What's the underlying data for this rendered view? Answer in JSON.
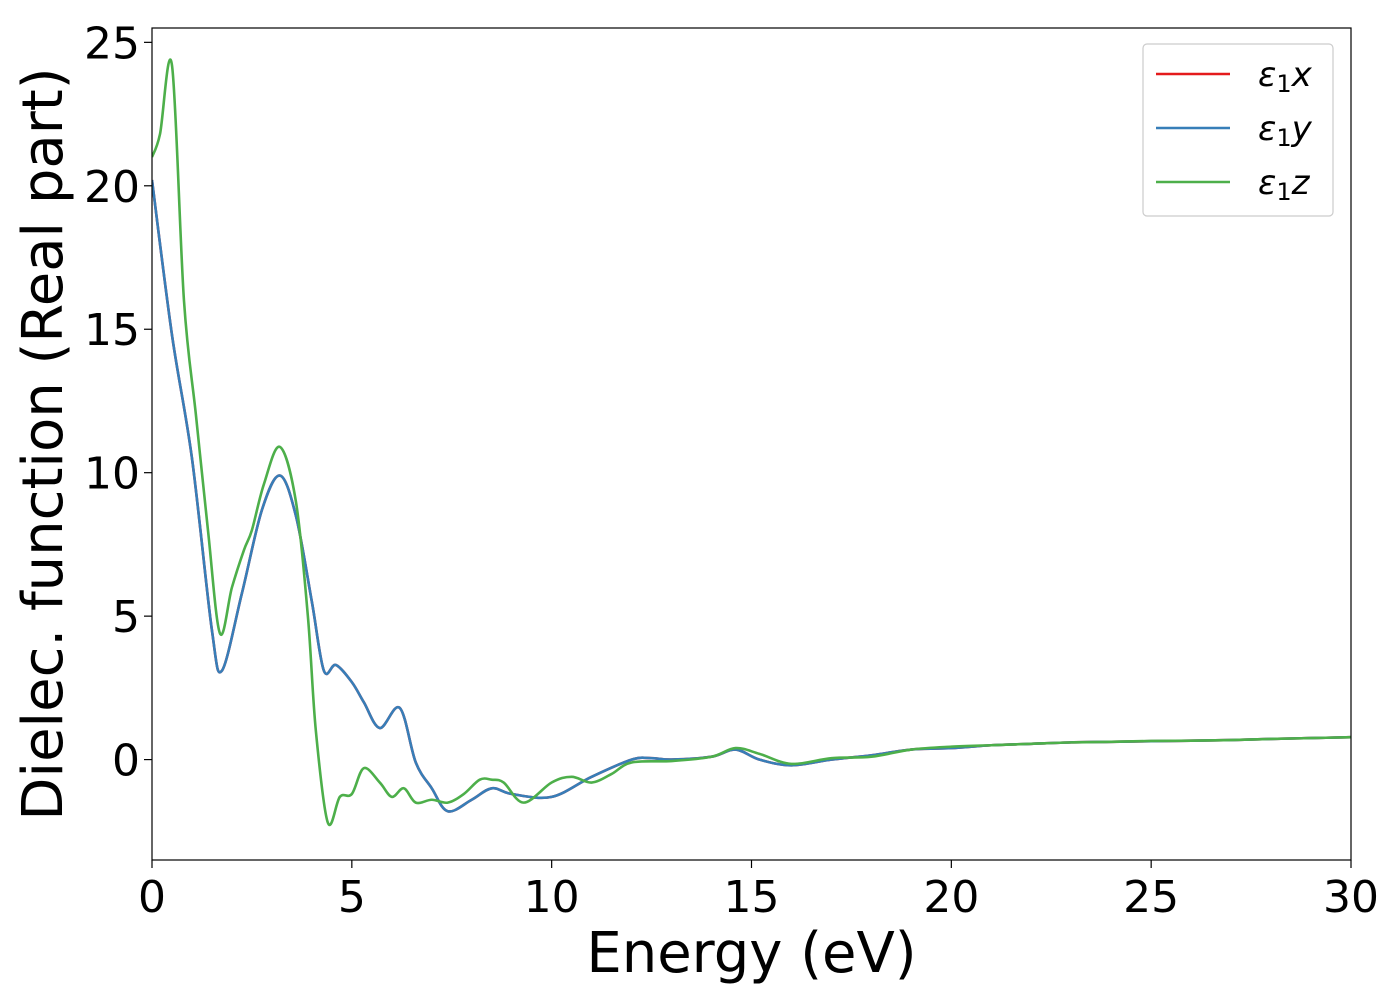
{
  "chart_data": {
    "type": "line",
    "xlabel": "Energy (eV)",
    "ylabel": "Dielec. function (Real part)",
    "xlim": [
      0,
      30
    ],
    "ylim": [
      -3.5,
      25.5
    ],
    "xticks": [
      0,
      5,
      10,
      15,
      20,
      25,
      30
    ],
    "yticks": [
      0,
      5,
      10,
      15,
      20,
      25
    ],
    "grid": false,
    "legend_position": "top-right",
    "series": [
      {
        "name": "ε₁x",
        "sym": "ε",
        "sub": "1",
        "var": "x",
        "color": "#e41a1c",
        "x": [
          0,
          0.5,
          1,
          1.5,
          1.75,
          2.25,
          2.75,
          3.2,
          3.6,
          4,
          4.3,
          4.6,
          5,
          5.3,
          5.7,
          6.2,
          6.6,
          7,
          7.4,
          8,
          8.5,
          9,
          10,
          11,
          12,
          12.5,
          13,
          14,
          14.6,
          15.2,
          16,
          17,
          18,
          19,
          20,
          21,
          22,
          23,
          24,
          25,
          26,
          27,
          28,
          29,
          30
        ],
        "y": [
          20.2,
          14.8,
          10.5,
          4.5,
          3.1,
          5.8,
          8.7,
          9.9,
          8.5,
          5.5,
          3.1,
          3.3,
          2.7,
          2.0,
          1.1,
          1.8,
          -0.1,
          -1.0,
          -1.8,
          -1.4,
          -1.0,
          -1.2,
          -1.3,
          -0.6,
          0.0,
          0.05,
          0.0,
          0.1,
          0.35,
          0.0,
          -0.2,
          0.0,
          0.15,
          0.35,
          0.4,
          0.5,
          0.55,
          0.6,
          0.62,
          0.64,
          0.66,
          0.68,
          0.72,
          0.75,
          0.78
        ]
      },
      {
        "name": "ε₁y",
        "sym": "ε",
        "sub": "1",
        "var": "y",
        "color": "#377eb8",
        "x": [
          0,
          0.5,
          1,
          1.5,
          1.75,
          2.25,
          2.75,
          3.2,
          3.6,
          4,
          4.3,
          4.6,
          5,
          5.3,
          5.7,
          6.2,
          6.6,
          7,
          7.4,
          8,
          8.5,
          9,
          10,
          11,
          12,
          12.5,
          13,
          14,
          14.6,
          15.2,
          16,
          17,
          18,
          19,
          20,
          21,
          22,
          23,
          24,
          25,
          26,
          27,
          28,
          29,
          30
        ],
        "y": [
          20.2,
          14.8,
          10.5,
          4.5,
          3.1,
          5.8,
          8.7,
          9.9,
          8.5,
          5.5,
          3.1,
          3.3,
          2.7,
          2.0,
          1.1,
          1.8,
          -0.1,
          -1.0,
          -1.8,
          -1.4,
          -1.0,
          -1.2,
          -1.3,
          -0.6,
          0.0,
          0.05,
          0.0,
          0.1,
          0.35,
          0.0,
          -0.2,
          0.0,
          0.15,
          0.35,
          0.4,
          0.5,
          0.55,
          0.6,
          0.62,
          0.64,
          0.66,
          0.68,
          0.72,
          0.75,
          0.78
        ]
      },
      {
        "name": "ε₁z",
        "sym": "ε",
        "sub": "1",
        "var": "z",
        "color": "#4daf4a",
        "x": [
          0,
          0.2,
          0.5,
          0.8,
          1.1,
          1.4,
          1.7,
          2.0,
          2.3,
          2.5,
          2.8,
          3.2,
          3.6,
          3.9,
          4.1,
          4.4,
          4.7,
          5.0,
          5.3,
          5.7,
          6.0,
          6.3,
          6.6,
          7.0,
          7.4,
          7.8,
          8.2,
          8.5,
          8.8,
          9.3,
          10.0,
          10.5,
          11.0,
          11.5,
          12.0,
          13.0,
          14.0,
          14.6,
          15.2,
          16.0,
          17.0,
          18.0,
          19.0,
          20.0,
          21.0,
          22.0,
          23.0,
          24.0,
          25.0,
          26.0,
          27.0,
          28.0,
          29.0,
          30.0
        ],
        "y": [
          21.0,
          21.8,
          24.2,
          16.0,
          12.0,
          8.0,
          4.4,
          6.0,
          7.3,
          8.0,
          9.6,
          10.9,
          9.0,
          5.0,
          1.0,
          -2.2,
          -1.3,
          -1.2,
          -0.3,
          -0.8,
          -1.3,
          -1.0,
          -1.5,
          -1.4,
          -1.5,
          -1.2,
          -0.7,
          -0.7,
          -0.8,
          -1.5,
          -0.8,
          -0.6,
          -0.8,
          -0.5,
          -0.1,
          -0.05,
          0.1,
          0.4,
          0.2,
          -0.15,
          0.05,
          0.1,
          0.35,
          0.45,
          0.5,
          0.55,
          0.6,
          0.62,
          0.65,
          0.66,
          0.68,
          0.72,
          0.75,
          0.78
        ]
      }
    ]
  }
}
